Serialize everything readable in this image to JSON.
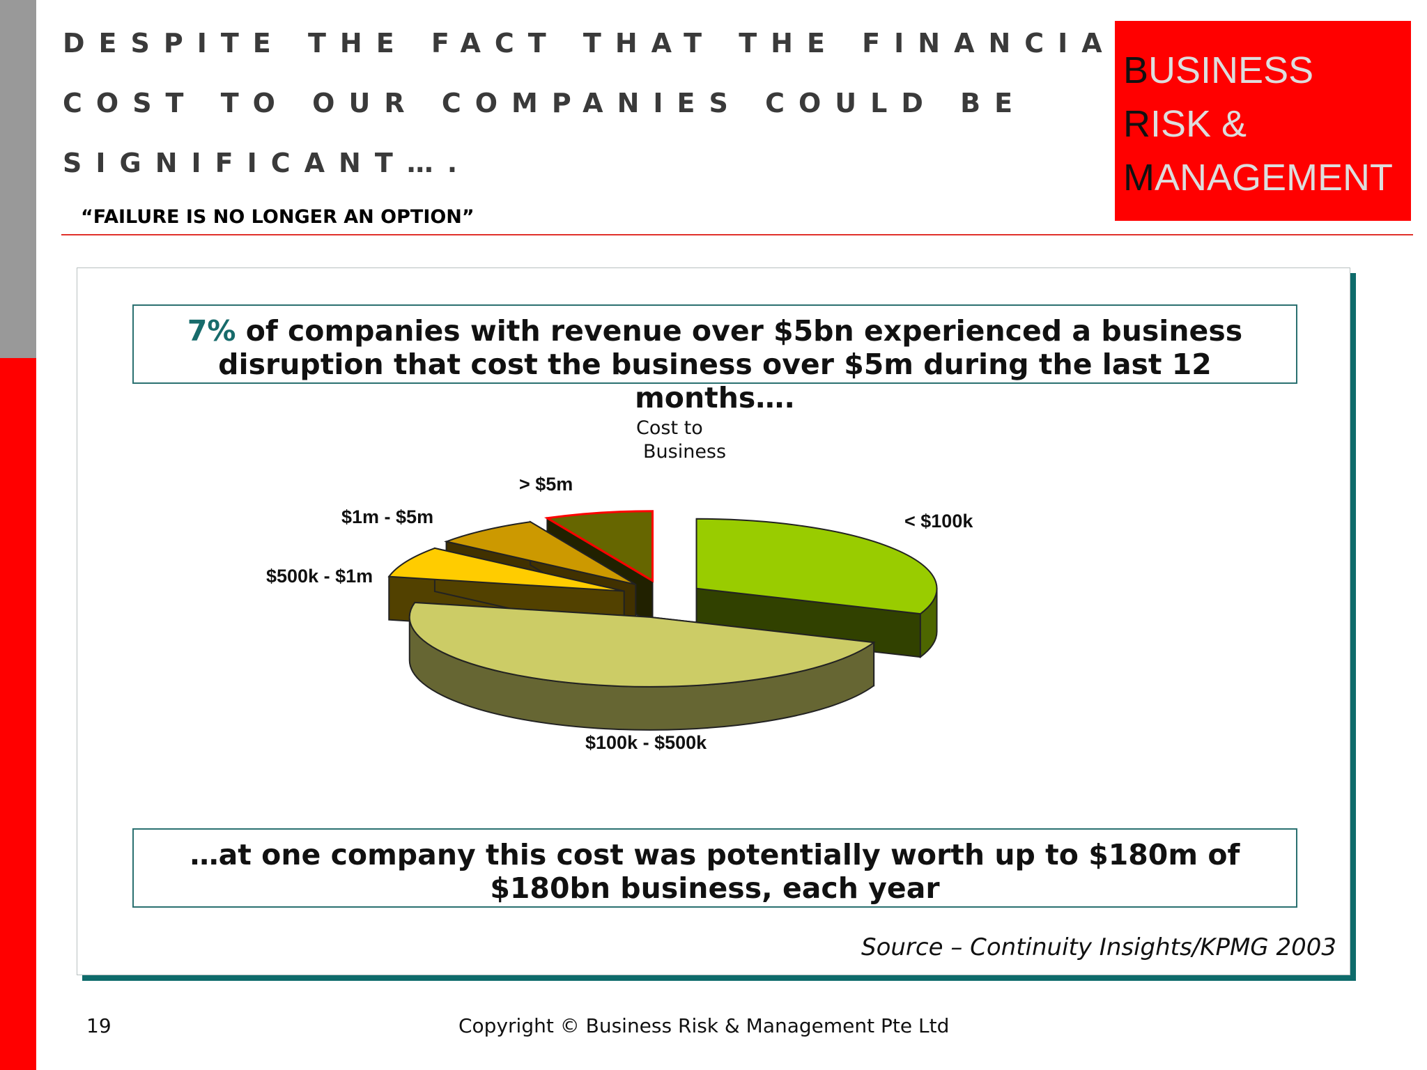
{
  "slide": {
    "headline_line1": "Despite the fact that the financial",
    "headline_line2": "cost to our companies could be",
    "headline_line3": "significant….",
    "subtitle": "“FAILURE IS NO LONGER AN OPTION”",
    "logo": {
      "line1_first": "B",
      "line1_rest": "USINESS",
      "line2_first": "R",
      "line2_rest": "ISK &",
      "line3_first": "M",
      "line3_rest": "ANAGEMENT"
    },
    "callout_top_pct": "7%",
    "callout_top_line1_rest": " of companies with revenue over $5bn experienced a business",
    "callout_top_line2": "disruption that cost the business over $5m during the last 12 months….",
    "callout_bottom_line1": "…at one company this cost was potentially worth up to $180m of",
    "callout_bottom_line2": "$180bn business, each year",
    "source": "Source – Continuity Insights/KPMG 2003",
    "page_number": "19",
    "copyright": "Copyright © Business Risk & Management Pte Ltd"
  },
  "chart_data": {
    "type": "pie",
    "title": "Cost to Business",
    "title_line1": "Cost to",
    "title_line2": "Business",
    "style": "3d-exploded",
    "categories": [
      "< $100k",
      "$100k - $500k",
      "$500k - $1m",
      "$1m - $5m",
      "> $5m"
    ],
    "values": [
      30,
      46,
      7,
      7,
      7
    ],
    "colors": [
      "#99cc00",
      "#cccc66",
      "#ffcc00",
      "#cc9900",
      "#666600"
    ],
    "highlight": "> $5m",
    "highlight_color": "#ff0000"
  }
}
